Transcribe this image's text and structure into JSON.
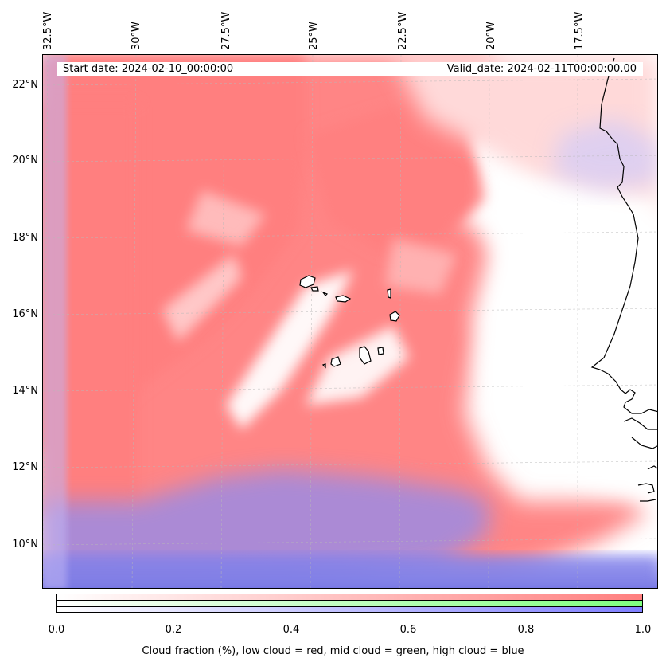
{
  "map": {
    "start_date": "Start date: 2024-02-10_00:00:00",
    "valid_date": "Valid_date: 2024-02-11T00:00:00.00",
    "lat_labels": [
      "22°N",
      "20°N",
      "18°N",
      "16°N",
      "14°N",
      "12°N",
      "10°N"
    ],
    "lon_labels": [
      "32.5°W",
      "30°W",
      "27.5°W",
      "25°W",
      "22.5°W",
      "20°W",
      "17.5°W"
    ],
    "lat_range": [
      9,
      22.5
    ],
    "lon_range": [
      -32.7,
      -15.5
    ],
    "layers": [
      "low cloud",
      "mid cloud",
      "high cloud"
    ],
    "colors": {
      "low_cloud": "#ff7f7f",
      "mid_cloud": "#7fff7f",
      "high_cloud": "#7f7fff"
    }
  },
  "colorbar": {
    "ticks": [
      "0.0",
      "0.2",
      "0.4",
      "0.6",
      "0.8",
      "1.0"
    ],
    "range": [
      0,
      1
    ],
    "title": "Cloud fraction (%), low cloud = red, mid cloud = green, high cloud = blue"
  }
}
